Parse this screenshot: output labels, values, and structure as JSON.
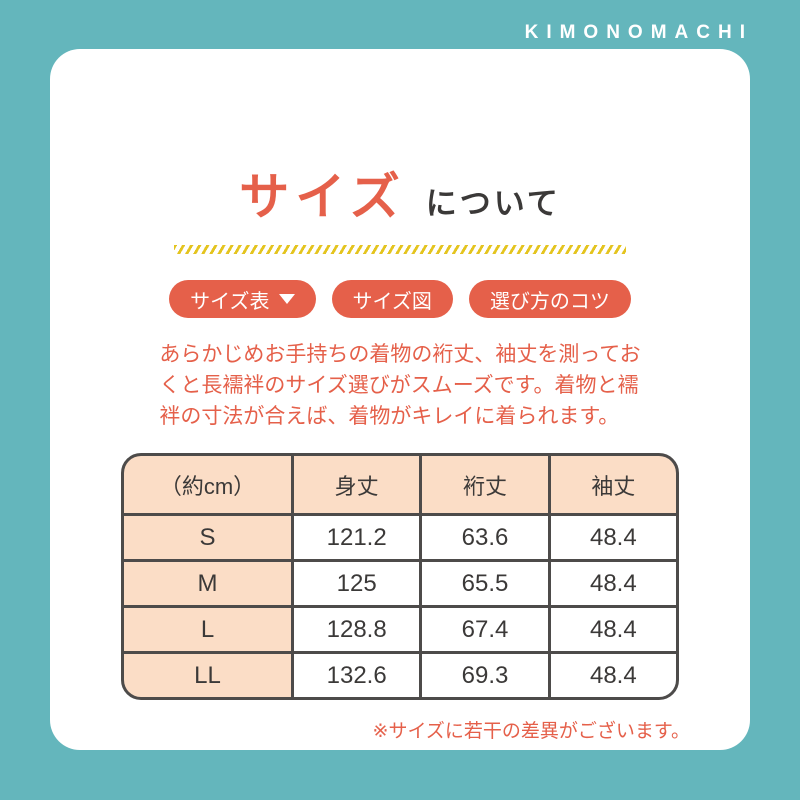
{
  "brand": {
    "logo": "KIMONOMACHI"
  },
  "header": {
    "title_main": "サイズ",
    "title_suffix": "について"
  },
  "nav_buttons": [
    {
      "label": "サイズ表",
      "has_caret": true
    },
    {
      "label": "サイズ図",
      "has_caret": false
    },
    {
      "label": "選び方のコツ",
      "has_caret": false
    }
  ],
  "description_lines": [
    "あらかじめお手持ちの着物の裄丈、袖丈を測ってお",
    "くと長襦袢のサイズ選びがスムーズです。着物と襦",
    "袢の寸法が合えば、着物がキレイに着られます。"
  ],
  "size_table": {
    "headers": [
      "（約cm）",
      "身丈",
      "裄丈",
      "袖丈"
    ],
    "rows": [
      [
        "S",
        "121.2",
        "63.6",
        "48.4"
      ],
      [
        "M",
        "125",
        "65.5",
        "48.4"
      ],
      [
        "L",
        "128.8",
        "67.4",
        "48.4"
      ],
      [
        "LL",
        "132.6",
        "69.3",
        "48.4"
      ]
    ]
  },
  "note": "※サイズに若干の差異がございます。",
  "colors": {
    "background_teal": "#64b6bc",
    "accent_coral": "#e5604a",
    "table_header_peach": "#fbddc6",
    "divider_yellow": "#e4c41f",
    "table_border": "#4d4b4a",
    "text_dark": "#3b3938"
  }
}
